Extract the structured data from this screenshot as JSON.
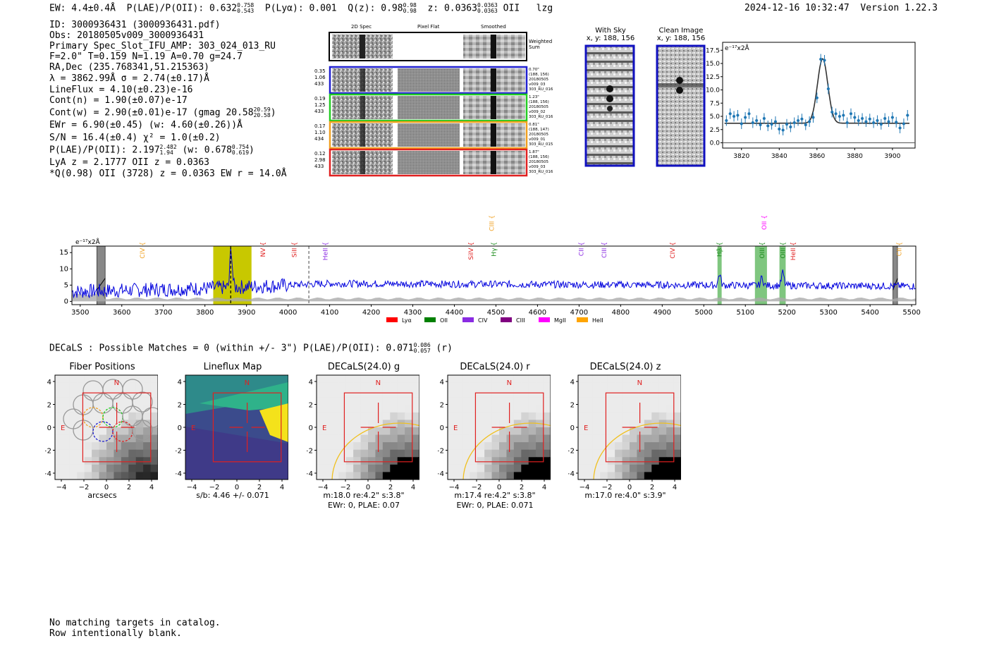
{
  "header": {
    "ew": "EW: 4.4±0.4Å",
    "plae_label": "P(LAE)/P(OII): 0.632",
    "plae_hi": "0.758",
    "plae_lo": "0.543",
    "plya": "P(Lyα): 0.001",
    "qz_label": "Q(z): 0.98",
    "qz_hi": "0.98",
    "qz_lo": "0.98",
    "z_label": "z: 0.0363",
    "z_hi": "0.0363",
    "z_lo": "0.0363",
    "z_line": "OII",
    "z_flag": "lzg",
    "timestamp": "2024-12-16 10:32:47",
    "version": "Version 1.22.3"
  },
  "info": {
    "id": "ID: 3000936431 (3000936431.pdf)",
    "obs": "Obs: 20180505v009_3000936431",
    "primary": "Primary Spec_Slot_IFU_AMP: 303_024_013_RU",
    "fwhm": "F=2.0\"  T=0.159  N=1.19  A=0.70  g=24.7",
    "radec": "RA,Dec (235.768341,51.215363)",
    "lambda": "λ = 3862.99Å  σ = 2.74(±0.17)Å",
    "lineflux": "LineFlux = 4.10(±0.23)e-16",
    "contn": "Cont(n) = 1.90(±0.07)e-17",
    "contw": "Cont(w) = 2.90(±0.01)e-17 (gmag 20.58",
    "gmag_hi": "20.59",
    "gmag_lo": "20.58",
    "ewr": "EWr = 6.90(±0.45)  (w: 4.60(±0.26))Å",
    "sn": "S/N = 16.4(±0.4)  χ² = 1.0(±0.2)",
    "plae": "P(LAE)/P(OII): 2.197",
    "plae_hi": "2.482",
    "plae_lo": "1.94",
    "plae_w": "(w: 0.678",
    "plae_w_hi": "0.754",
    "plae_w_lo": "0.619",
    "lya": "LyA z = 2.1777  OII z = 0.0363",
    "q": "*Q(0.98) OII (3728) z = 0.0363  EW r = 14.0Å"
  },
  "cutouts": {
    "col_headers": [
      "2D Spec",
      "Pixel Flat",
      "Smoothed"
    ],
    "weighted_sum": "Weighted\nSum",
    "rows": [
      {
        "left": "0.35\n1.06\n433",
        "right": "0.70\"\n(188, 156)\n20180505\nv009_03\n303_RU_016",
        "color": "#1f1fd0"
      },
      {
        "left": "0.19\n1.25\n433",
        "right": "1.23\"\n(188, 156)\n20180505\nv009_02\n303_RU_016",
        "color": "#22cc22"
      },
      {
        "left": "0.17\n1.10\n434",
        "right": "0.81\"\n(188, 147)\n20180505\nv009_01\n303_RU_015",
        "color": "#f0a020"
      },
      {
        "left": "0.12\n2.98\n433",
        "right": "1.87\"\n(188, 156)\n20180505\nv009_03\n303_RU_016",
        "color": "#e02020"
      }
    ]
  },
  "sky_panels": {
    "with_sky_title": "With Sky",
    "with_sky_xy": "x, y: 188, 156",
    "clean_title": "Clean Image",
    "clean_xy": "x, y: 188, 156"
  },
  "zoom_chart": {
    "type": "scatter",
    "ylabel": "e⁻¹⁷x2Å",
    "x_ticks": [
      "3820",
      "3840",
      "3860",
      "3880",
      "3900"
    ],
    "y_ticks": [
      "0.0",
      "2.5",
      "5.0",
      "7.5",
      "10.0",
      "12.5",
      "15.0",
      "17.5"
    ],
    "xlim": [
      3810,
      3912
    ],
    "ylim": [
      -1,
      19
    ],
    "x": [
      3812,
      3814,
      3816,
      3818,
      3820,
      3822,
      3824,
      3826,
      3828,
      3830,
      3832,
      3834,
      3836,
      3838,
      3840,
      3842,
      3844,
      3846,
      3848,
      3850,
      3852,
      3854,
      3856,
      3858,
      3860,
      3862,
      3864,
      3866,
      3868,
      3870,
      3872,
      3874,
      3876,
      3878,
      3880,
      3882,
      3884,
      3886,
      3888,
      3890,
      3892,
      3894,
      3896,
      3898,
      3900,
      3902,
      3904,
      3906,
      3908
    ],
    "y": [
      4.2,
      5.5,
      5.0,
      5.2,
      3.6,
      4.8,
      5.5,
      3.8,
      4.2,
      3.4,
      4.6,
      3.2,
      3.5,
      4.0,
      2.6,
      2.4,
      3.5,
      3.0,
      3.8,
      4.2,
      4.5,
      3.4,
      4.0,
      4.8,
      8.5,
      15.8,
      15.6,
      10.2,
      5.8,
      5.5,
      5.0,
      5.2,
      3.8,
      5.5,
      4.8,
      4.2,
      4.6,
      4.0,
      4.5,
      3.8,
      4.2,
      3.5,
      4.6,
      4.0,
      4.8,
      3.9,
      2.8,
      3.6,
      5.2
    ],
    "model_continuum": 3.7,
    "model_center": 3863,
    "model_amp": 12.2,
    "model_sigma": 2.74
  },
  "spectrum_chart": {
    "type": "line",
    "ylabel": "e⁻¹⁷x2Å",
    "x_ticks": [
      "3500",
      "3600",
      "3700",
      "3800",
      "3900",
      "4000",
      "4100",
      "4200",
      "4300",
      "4400",
      "4500",
      "4600",
      "4700",
      "4800",
      "4900",
      "5000",
      "5100",
      "5200",
      "5300",
      "5400",
      "5500"
    ],
    "y_ticks": [
      "0",
      "5",
      "10",
      "15"
    ],
    "xlim": [
      3480,
      5510
    ],
    "ylim": [
      -1,
      17
    ],
    "series_color": "#0000dd",
    "line_labels": [
      {
        "name": "CIV",
        "wave": 3650,
        "color": "#f0a020",
        "tier": 1
      },
      {
        "name": "NV",
        "wave": 3940,
        "color": "#e02020",
        "tier": 1
      },
      {
        "name": "SiII",
        "wave": 4015,
        "color": "#e02020",
        "tier": 1
      },
      {
        "name": "HeII",
        "wave": 4090,
        "color": "#8a2be2",
        "tier": 1
      },
      {
        "name": "CIII",
        "wave": 4490,
        "color": "#f0a020",
        "tier": 0
      },
      {
        "name": "SiIV",
        "wave": 4440,
        "color": "#e02020",
        "tier": 1
      },
      {
        "name": "Hγ",
        "wave": 4495,
        "color": "#1a8a1a",
        "tier": 1
      },
      {
        "name": "CII",
        "wave": 4705,
        "color": "#8a2be2",
        "tier": 1
      },
      {
        "name": "CIII",
        "wave": 4760,
        "color": "#8a2be2",
        "tier": 1
      },
      {
        "name": "CIV",
        "wave": 4925,
        "color": "#e02020",
        "tier": 1
      },
      {
        "name": "Hβ",
        "wave": 5038,
        "color": "#1a8a1a",
        "tier": 1
      },
      {
        "name": "OII",
        "wave": 5145,
        "color": "#ff00ff",
        "tier": 0
      },
      {
        "name": "OIII",
        "wave": 5140,
        "color": "#1a8a1a",
        "tier": 1
      },
      {
        "name": "OIII",
        "wave": 5190,
        "color": "#1a8a1a",
        "tier": 1
      },
      {
        "name": "HeII",
        "wave": 5215,
        "color": "#e02020",
        "tier": 1
      },
      {
        "name": "CII",
        "wave": 5470,
        "color": "#f0a020",
        "tier": 1
      }
    ],
    "legend": [
      {
        "name": "Lyα",
        "color": "#ff0000"
      },
      {
        "name": "OII",
        "color": "#008000"
      },
      {
        "name": "CIV",
        "color": "#8a2be2"
      },
      {
        "name": "CIII",
        "color": "#800080"
      },
      {
        "name": "MgII",
        "color": "#ff00ff"
      },
      {
        "name": "HeII",
        "color": "#ffa500"
      }
    ],
    "highlight_band": [
      3820,
      3912
    ],
    "gray_bands": [
      [
        3540,
        3560
      ],
      [
        5455,
        5466
      ]
    ],
    "green_bands": [
      [
        5033,
        5043
      ],
      [
        5123,
        5152
      ],
      [
        5182,
        5197
      ]
    ],
    "dashed_lines": [
      3862,
      4050
    ]
  },
  "decals_line": {
    "text": "DECaLS : Possible Matches = 0 (within +/- 3\")  P(LAE)/P(OII): 0.071",
    "hi": "0.086",
    "lo": "0.057",
    "band": "(r)"
  },
  "mini_panels": [
    {
      "title": "Fiber Positions",
      "cap1": "arcsecs",
      "cap2": ""
    },
    {
      "title": "Lineflux Map",
      "cap1": "s/b: 4.46 +/- 0.071",
      "cap2": ""
    },
    {
      "title": "DECaLS(24.0) g",
      "cap1": "m:18.0  re:4.2\"  s:3.8\"",
      "cap2": "EWr: 0, PLAE: 0.07"
    },
    {
      "title": "DECaLS(24.0) r",
      "cap1": "m:17.4  re:4.2\"  s:3.8\"",
      "cap2": "EWr: 0, PLAE: 0.071"
    },
    {
      "title": "DECaLS(24.0) z",
      "cap1": "m:17.0  re:4.0\"  s:3.9\"",
      "cap2": ""
    }
  ],
  "mini_axis": {
    "x_ticks": [
      "−4",
      "−2",
      "0",
      "2",
      "4"
    ],
    "y_ticks": [
      "4",
      "2",
      "0",
      "−2",
      "−4"
    ],
    "n_label": "N",
    "e_label": "E"
  },
  "footer": {
    "line1": "No matching targets in catalog.",
    "line2": "Row intentionally blank."
  }
}
